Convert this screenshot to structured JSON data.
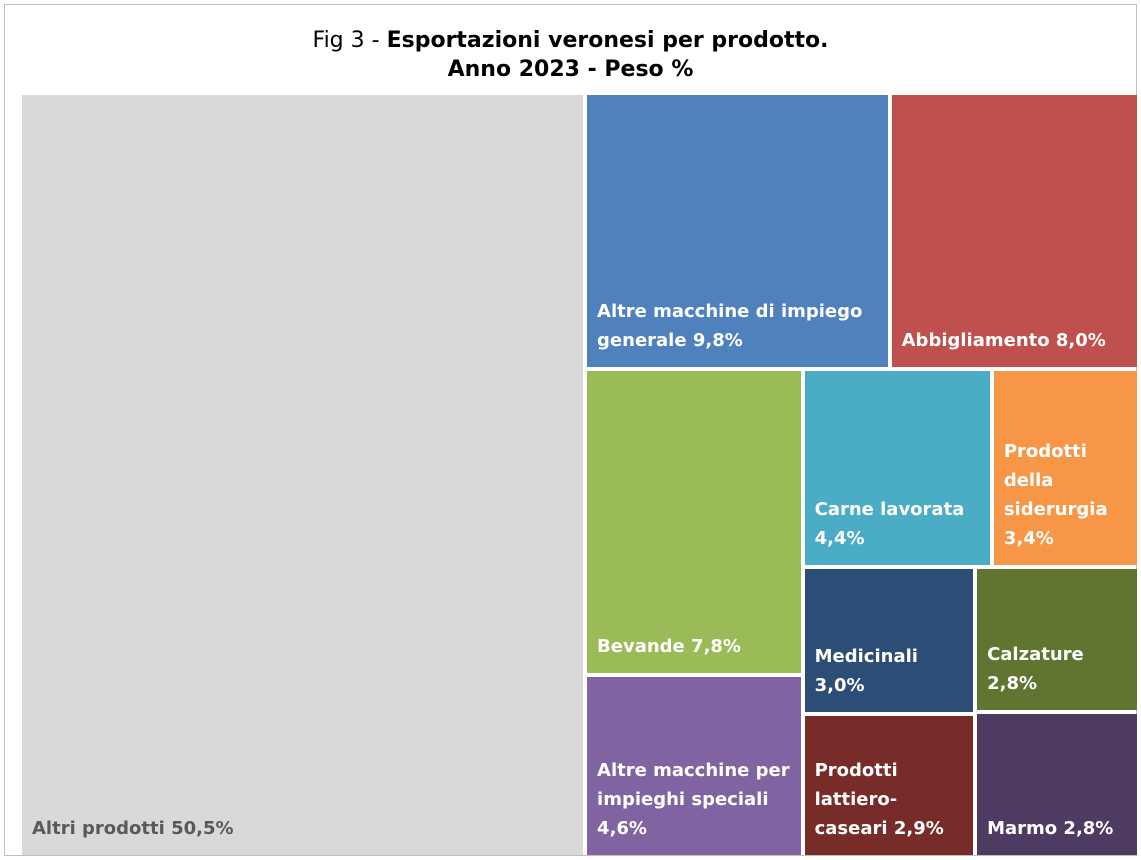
{
  "chart_data": {
    "type": "treemap",
    "title": {
      "prefix": "Fig 3 -",
      "main": "Esportazioni veronesi per prodotto.",
      "second": "Anno 2023 - Peso  %"
    },
    "categories": [
      "Altri prodotti",
      "Altre macchine di impiego generale",
      "Abbigliamento",
      "Bevande",
      "Altre macchine per impieghi speciali",
      "Carne lavorata",
      "Prodotti della siderurgia",
      "Medicinali",
      "Calzature",
      "Prodotti lattiero-caseari",
      "Marmo"
    ],
    "values": [
      50.5,
      9.8,
      8.0,
      7.8,
      4.6,
      4.4,
      3.4,
      3.0,
      2.8,
      2.9,
      2.8
    ],
    "value_labels": [
      "50,5%",
      "9,8%",
      "8,0%",
      "7,8%",
      "4,6%",
      "4,4%",
      "3,4%",
      "3,0%",
      "2,8%",
      "2,9%",
      "2,8%"
    ],
    "colors": [
      "#d9d9d9",
      "#4f81bd",
      "#c0504d",
      "#9bbb59",
      "#8064a2",
      "#4bacc6",
      "#f79646",
      "#2c4d75",
      "#5f7530",
      "#772c2a",
      "#4d3b62"
    ]
  }
}
